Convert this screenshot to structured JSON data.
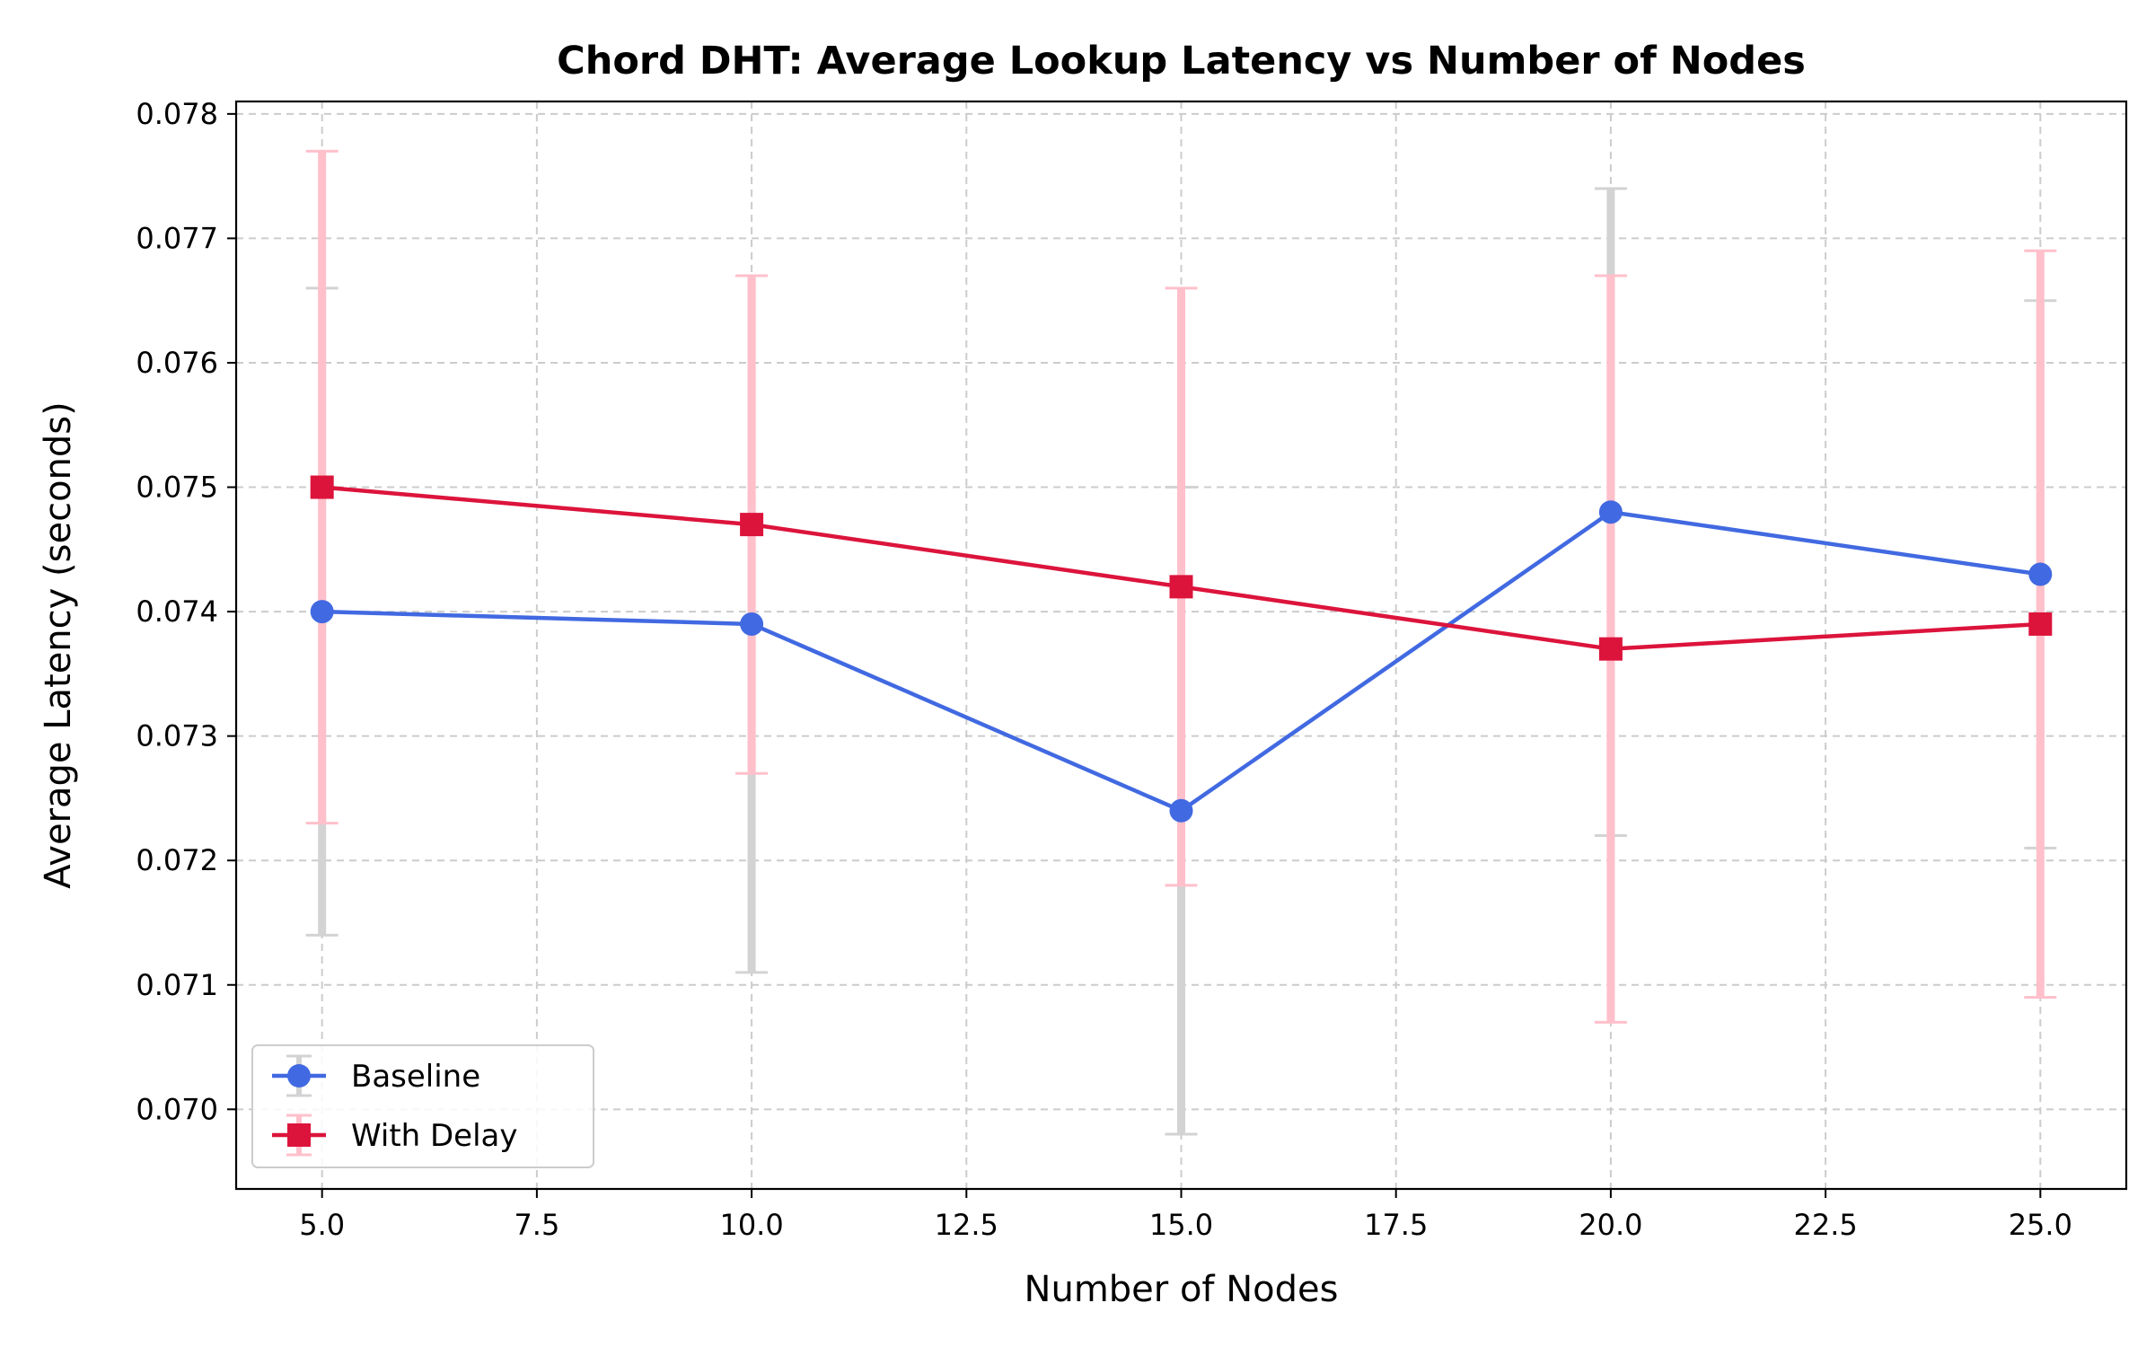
{
  "chart_data": {
    "type": "line",
    "title": "Chord DHT: Average Lookup Latency vs Number of Nodes",
    "xlabel": "Number of Nodes",
    "ylabel": "Average Latency (seconds)",
    "xlim": [
      4.0,
      26.0
    ],
    "ylim": [
      0.06936,
      0.0781
    ],
    "x": [
      5,
      10,
      15,
      20,
      25
    ],
    "x_ticks": [
      5.0,
      7.5,
      10.0,
      12.5,
      15.0,
      17.5,
      20.0,
      22.5,
      25.0
    ],
    "x_tick_labels": [
      "5.0",
      "7.5",
      "10.0",
      "12.5",
      "15.0",
      "17.5",
      "20.0",
      "22.5",
      "25.0"
    ],
    "y_ticks": [
      0.07,
      0.071,
      0.072,
      0.073,
      0.074,
      0.075,
      0.076,
      0.077,
      0.078
    ],
    "y_tick_labels": [
      "0.070",
      "0.071",
      "0.072",
      "0.073",
      "0.074",
      "0.075",
      "0.076",
      "0.077",
      "0.078"
    ],
    "grid": true,
    "legend_position": "lower-left",
    "series": [
      {
        "name": "Baseline",
        "color": "#4169e1",
        "error_color": "#d3d3d3",
        "marker": "circle",
        "values": [
          0.074,
          0.0739,
          0.0724,
          0.0748,
          0.0743
        ],
        "errors": [
          0.0026,
          0.0028,
          0.0026,
          0.0026,
          0.0022
        ]
      },
      {
        "name": "With Delay",
        "color": "#dc143c",
        "error_color": "#ffc0cb",
        "marker": "square",
        "values": [
          0.075,
          0.0747,
          0.0742,
          0.0737,
          0.0739
        ],
        "errors": [
          0.0027,
          0.002,
          0.0024,
          0.003,
          0.003
        ]
      }
    ]
  }
}
